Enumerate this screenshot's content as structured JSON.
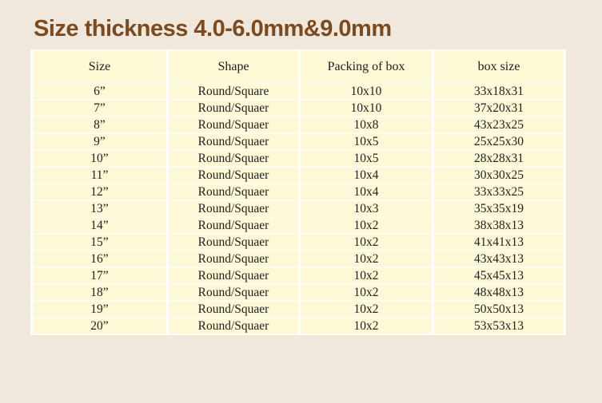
{
  "page": {
    "title": "Size thickness 4.0-6.0mm&9.0mm",
    "colors": {
      "background": "#f0e7dd",
      "title_text": "#7b4a1e",
      "cell_background": "#fdf8d6",
      "grid_line_vertical": "#ffffff",
      "grid_line_horizontal": "#fffdf0",
      "body_text": "#222222"
    }
  },
  "table": {
    "headers": [
      "Size",
      "Shape",
      "Packing of box",
      "box size"
    ],
    "rows": [
      [
        "6”",
        "Round/Square",
        "10x10",
        "33x18x31"
      ],
      [
        "7”",
        "Round/Squaer",
        "10x10",
        "37x20x31"
      ],
      [
        "8”",
        "Round/Squaer",
        "10x8",
        "43x23x25"
      ],
      [
        "9”",
        "Round/Squaer",
        "10x5",
        "25x25x30"
      ],
      [
        "10”",
        "Round/Squaer",
        "10x5",
        "28x28x31"
      ],
      [
        "11”",
        "Round/Squaer",
        "10x4",
        "30x30x25"
      ],
      [
        "12”",
        "Round/Squaer",
        "10x4",
        "33x33x25"
      ],
      [
        "13”",
        "Round/Squaer",
        "10x3",
        "35x35x19"
      ],
      [
        "14”",
        "Round/Squaer",
        "10x2",
        "38x38x13"
      ],
      [
        "15”",
        "Round/Squaer",
        "10x2",
        "41x41x13"
      ],
      [
        "16”",
        "Round/Squaer",
        "10x2",
        "43x43x13"
      ],
      [
        "17”",
        "Round/Squaer",
        "10x2",
        "45x45x13"
      ],
      [
        "18”",
        "Round/Squaer",
        "10x2",
        "48x48x13"
      ],
      [
        "19”",
        "Round/Squaer",
        "10x2",
        "50x50x13"
      ],
      [
        "20”",
        "Round/Squaer",
        "10x2",
        "53x53x13"
      ]
    ]
  }
}
